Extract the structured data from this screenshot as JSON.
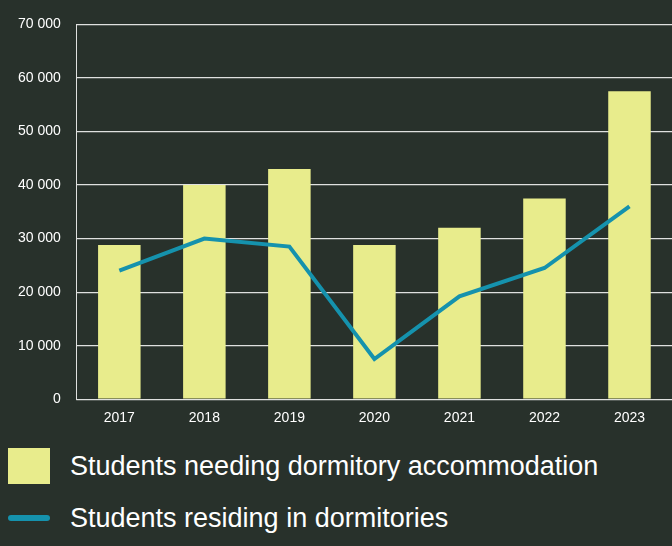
{
  "chart_data": {
    "type": "bar",
    "categories": [
      "2017",
      "2018",
      "2019",
      "2020",
      "2021",
      "2022",
      "2023"
    ],
    "series": [
      {
        "name": "Students needing dormitory accommodation",
        "type": "bar",
        "color": "#e8ec8c",
        "values": [
          28800,
          40000,
          43000,
          28800,
          32000,
          37500,
          57500
        ]
      },
      {
        "name": "Students residing in dormitories",
        "type": "line",
        "color": "#1592ad",
        "marker": "none",
        "values": [
          24000,
          30000,
          28500,
          7500,
          19200,
          24500,
          36000
        ]
      }
    ],
    "ylim": [
      0,
      70000
    ],
    "yticks": [
      0,
      {
        "value": 10000,
        "label": "10 000"
      },
      {
        "value": 20000,
        "label": "20 000"
      },
      {
        "value": 30000,
        "label": "30 000"
      },
      {
        "value": 40000,
        "label": "40 000"
      },
      {
        "value": 50000,
        "label": "50 000"
      },
      {
        "value": 60000,
        "label": "60 000"
      },
      {
        "value": 70000,
        "label": "70 000"
      }
    ],
    "grid": true,
    "legend": "bottom"
  }
}
